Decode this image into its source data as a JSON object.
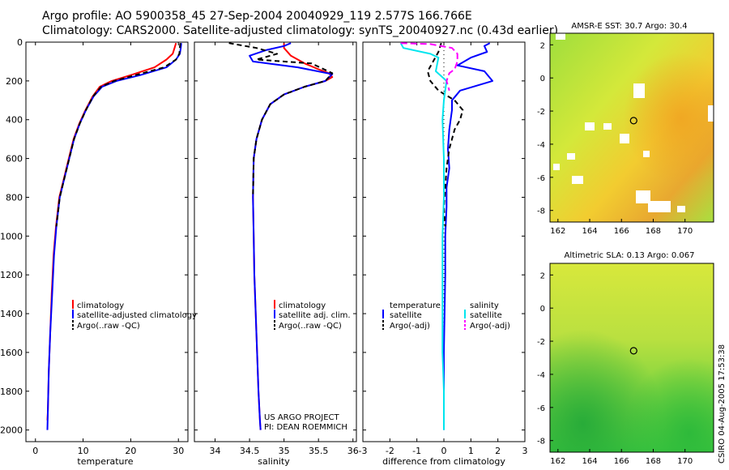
{
  "title_line1": "Argo profile: AO 5900358_45 27-Sep-2004 20040929_119 2.577S 166.766E",
  "title_line2": "Climatology: CARS2000. Satellite-adjusted climatology: synTS_20040927.nc (0.43d earlier)",
  "colors": {
    "red": "#ff0000",
    "blue": "#0000ff",
    "black": "#000000",
    "cyan": "#00e5ee",
    "magenta": "#ff00ff"
  },
  "chart_data": [
    {
      "type": "line",
      "id": "temperature",
      "xlabel": "temperature",
      "ylabel": "",
      "xlim": [
        -2,
        32
      ],
      "ylim": [
        2060,
        0
      ],
      "xticks": [
        "0",
        "10",
        "20",
        "30"
      ],
      "xtick_values": [
        0,
        10,
        20,
        30
      ],
      "yticks": [
        "0",
        "200",
        "400",
        "600",
        "800",
        "1000",
        "1200",
        "1400",
        "1600",
        "1800",
        "2000"
      ],
      "ytick_values": [
        0,
        200,
        400,
        600,
        800,
        1000,
        1200,
        1400,
        1600,
        1800,
        2000
      ],
      "legend": [
        "climatology",
        "satellite-adjusted climatology",
        "Argo(..raw -QC)"
      ],
      "series": [
        {
          "name": "climatology",
          "color": "red",
          "dash": "",
          "x": [
            29.5,
            29.2,
            28.8,
            27.5,
            25,
            20,
            16,
            13.5,
            12,
            10.5,
            9.2,
            8,
            7,
            6,
            5,
            4.3,
            3.8,
            3.4,
            3.1,
            2.8,
            2.6,
            2.5
          ],
          "y": [
            5,
            30,
            60,
            90,
            130,
            170,
            200,
            230,
            280,
            350,
            420,
            500,
            600,
            700,
            800,
            950,
            1100,
            1300,
            1500,
            1700,
            1900,
            1950
          ]
        },
        {
          "name": "satellite-adjusted climatology",
          "color": "blue",
          "dash": "",
          "x": [
            30.6,
            30.5,
            30.3,
            29.5,
            27.5,
            22,
            17,
            14,
            12.2,
            10.6,
            9.3,
            8.1,
            7.1,
            6.1,
            5.1,
            4.4,
            3.9,
            3.5,
            3.1,
            2.8,
            2.6,
            2.5
          ],
          "y": [
            5,
            30,
            60,
            90,
            130,
            170,
            200,
            230,
            280,
            350,
            420,
            500,
            600,
            700,
            800,
            950,
            1100,
            1300,
            1500,
            1700,
            1900,
            2000
          ]
        },
        {
          "name": "Argo(..raw -QC)",
          "color": "black",
          "dash": "6,4",
          "x": [
            30.4,
            30.3,
            30.2,
            29.5,
            27,
            21,
            16.5,
            13.8,
            12.1,
            10.6,
            9.3,
            8.1,
            7.1,
            6.1,
            5.1,
            4.4
          ],
          "y": [
            5,
            30,
            60,
            90,
            130,
            170,
            200,
            230,
            280,
            350,
            420,
            500,
            600,
            700,
            800,
            950
          ]
        }
      ],
      "annotations": []
    },
    {
      "type": "line",
      "id": "salinity",
      "xlabel": "salinity",
      "ylabel": "",
      "xlim": [
        33.7,
        36.05
      ],
      "ylim": [
        2060,
        0
      ],
      "xticks": [
        "34",
        "34.5",
        "35",
        "35.5",
        "36"
      ],
      "xtick_values": [
        34,
        34.5,
        35,
        35.5,
        36
      ],
      "yticks": [],
      "ytick_values": [],
      "legend": [
        "climatology",
        "satellite adj. clim.",
        "Argo(..raw -QC)"
      ],
      "series": [
        {
          "name": "climatology",
          "color": "red",
          "dash": "",
          "x": [
            35.0,
            35.0,
            35.1,
            35.3,
            35.5,
            35.65,
            35.7,
            35.6,
            35.3,
            35.0,
            34.8,
            34.68,
            34.6,
            34.56,
            34.55,
            34.56,
            34.57,
            34.59,
            34.61,
            34.63,
            34.65,
            34.66
          ],
          "y": [
            5,
            30,
            70,
            110,
            140,
            160,
            180,
            200,
            230,
            270,
            320,
            400,
            500,
            600,
            800,
            1000,
            1200,
            1400,
            1600,
            1800,
            1950,
            2000
          ]
        },
        {
          "name": "satellite adj. clim.",
          "color": "blue",
          "dash": "",
          "x": [
            35.1,
            35.0,
            34.75,
            34.5,
            34.55,
            35.2,
            35.7,
            35.6,
            35.3,
            35.0,
            34.8,
            34.68,
            34.6,
            34.56,
            34.55,
            34.56,
            34.57,
            34.59,
            34.61,
            34.63,
            34.65,
            34.66
          ],
          "y": [
            5,
            20,
            40,
            70,
            100,
            130,
            165,
            200,
            230,
            270,
            320,
            400,
            500,
            600,
            800,
            1000,
            1200,
            1400,
            1600,
            1800,
            1950,
            2000
          ]
        },
        {
          "name": "Argo(..raw -QC)",
          "color": "black",
          "dash": "6,4",
          "x": [
            34.2,
            34.6,
            34.9,
            34.6,
            35.4,
            35.7,
            35.6,
            35.3,
            35.0,
            34.8,
            34.68,
            34.6,
            34.56,
            34.55
          ],
          "y": [
            5,
            30,
            60,
            90,
            110,
            160,
            200,
            230,
            270,
            320,
            400,
            500,
            600,
            800
          ]
        }
      ],
      "annotations": [
        "US ARGO PROJECT",
        "PI: DEAN ROEMMICH"
      ]
    },
    {
      "type": "line",
      "id": "difference",
      "xlabel": "difference from climatology",
      "ylabel": "",
      "xlim": [
        -3,
        3
      ],
      "ylim": [
        2060,
        0
      ],
      "xticks": [
        "-3",
        "-2",
        "-1",
        "0",
        "1",
        "2",
        "3"
      ],
      "xtick_values": [
        -3,
        -2,
        -1,
        0,
        1,
        2,
        3
      ],
      "yticks": [],
      "ytick_values": [],
      "legend_temperature": [
        "temperature",
        "satellite",
        "Argo(-adj)"
      ],
      "legend_salinity": [
        "salinity",
        "satellite",
        "Argo(-adj)"
      ],
      "series": [
        {
          "name": "temperature satellite",
          "color": "blue",
          "dash": "",
          "x": [
            1.7,
            1.5,
            1.6,
            1.0,
            0.5,
            1.5,
            1.8,
            0.6,
            0.3,
            0.3,
            0.2,
            0.15,
            0.2,
            0.1,
            0.1,
            0.05,
            0.05,
            0.0,
            0.0
          ],
          "y": [
            5,
            20,
            50,
            80,
            120,
            150,
            200,
            250,
            300,
            350,
            450,
            550,
            650,
            750,
            850,
            1000,
            1200,
            1600,
            2000
          ]
        },
        {
          "name": "temperature Argo(-adj)",
          "color": "black",
          "dash": "6,4",
          "x": [
            -0.1,
            -0.2,
            -0.4,
            -0.6,
            -0.5,
            -0.2,
            0.4,
            0.7,
            0.6,
            0.4,
            0.3,
            0.2,
            0.1,
            0.05,
            0.0,
            0.05
          ],
          "y": [
            5,
            50,
            100,
            150,
            200,
            250,
            300,
            350,
            400,
            450,
            500,
            550,
            650,
            750,
            850,
            950
          ]
        },
        {
          "name": "salinity satellite",
          "color": "cyan",
          "dash": "",
          "x": [
            -1.6,
            -1.5,
            -0.5,
            -0.2,
            -0.3,
            0.1,
            0.0,
            -0.05,
            0.0,
            0.0,
            -0.05,
            -0.05,
            -0.05,
            -0.05,
            0.0,
            0.0
          ],
          "y": [
            5,
            30,
            60,
            80,
            150,
            200,
            300,
            400,
            600,
            800,
            1000,
            1200,
            1400,
            1600,
            1800,
            2000
          ]
        },
        {
          "name": "salinity Argo(-adj)",
          "color": "magenta",
          "dash": "8,4",
          "x": [
            -1.6,
            -0.5,
            0.3,
            0.5,
            0.5,
            0.4,
            0.2,
            0.1,
            0.2
          ],
          "y": [
            5,
            10,
            30,
            60,
            100,
            140,
            160,
            200,
            250
          ]
        }
      ],
      "annotations": []
    }
  ],
  "map_top": {
    "title": "AMSR-E SST: 30.7 Argo: 30.4",
    "xticks": [
      "162",
      "164",
      "166",
      "168",
      "170"
    ],
    "xtick_values": [
      162,
      164,
      166,
      168,
      170
    ],
    "yticks": [
      "2",
      "0",
      "-2",
      "-4",
      "-6",
      "-8"
    ],
    "ytick_values": [
      2,
      0,
      -2,
      -4,
      -6,
      -8
    ],
    "xlim": [
      161.5,
      171.8
    ],
    "ylim": [
      -8.7,
      2.7
    ],
    "marker": [
      166.766,
      -2.577
    ]
  },
  "map_bottom": {
    "title": "Altimetric SLA: 0.13 Argo: 0.067",
    "xticks": [
      "162",
      "164",
      "166",
      "168",
      "170"
    ],
    "xtick_values": [
      162,
      164,
      166,
      168,
      170
    ],
    "yticks": [
      "2",
      "0",
      "-2",
      "-4",
      "-6",
      "-8"
    ],
    "ytick_values": [
      2,
      0,
      -2,
      -4,
      -6,
      -8
    ],
    "xlim": [
      161.5,
      171.8
    ],
    "ylim": [
      -8.7,
      2.7
    ],
    "marker": [
      166.766,
      -2.577
    ]
  },
  "stamp": "CSIRO 04-Aug-2005 17:53:38"
}
